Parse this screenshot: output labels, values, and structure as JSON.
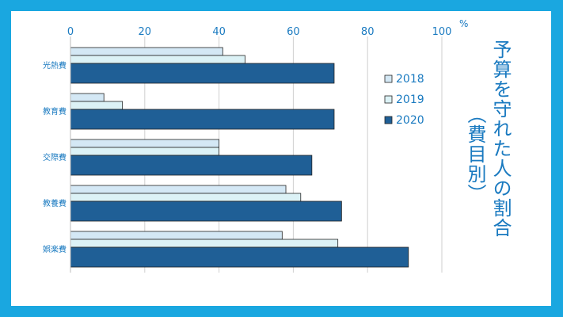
{
  "chart_data": {
    "type": "bar",
    "orientation": "horizontal",
    "axis_position": "top",
    "unit": "%",
    "title": "予算を守れた人の割合",
    "subtitle": "（費目別）",
    "categories": [
      "光熱費",
      "教育費",
      "交際費",
      "教養費",
      "娯楽費"
    ],
    "series": [
      {
        "name": "2018",
        "values": [
          41,
          9,
          40,
          58,
          57
        ],
        "color": "#d4e8f5"
      },
      {
        "name": "2019",
        "values": [
          47,
          14,
          40,
          62,
          72
        ],
        "color": "#dcf2f6"
      },
      {
        "name": "2020",
        "values": [
          71,
          71,
          65,
          73,
          91
        ],
        "color": "#1f5f96"
      }
    ],
    "xlim": [
      0,
      100
    ],
    "xticks": [
      0,
      20,
      40,
      60,
      80,
      100
    ],
    "grid": true,
    "legend_position": "right"
  },
  "colors": {
    "background_frame": "#1aa7e0",
    "text_accent": "#1a7ac0",
    "grid": "#cfcfcf"
  }
}
